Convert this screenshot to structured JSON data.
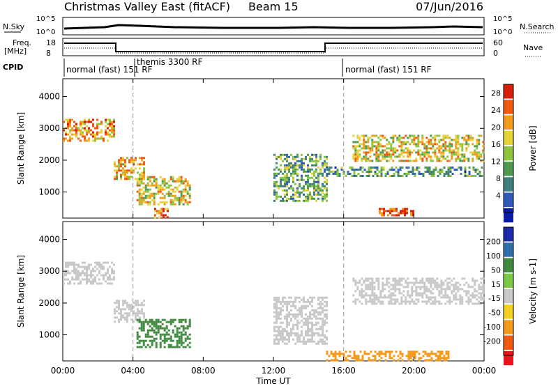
{
  "header": {
    "station": "Christmas Valley East (fitACF)",
    "beam": "Beam 15",
    "date": "07/Jun/2016"
  },
  "panels_small": {
    "nsky": {
      "label": "N.Sky",
      "ticks": [
        "10^5",
        "10^0"
      ]
    },
    "nsearch": {
      "label": "N.Search",
      "ticks": [
        "10^5",
        "10^0"
      ]
    },
    "freq": {
      "label_line1": "Freq.",
      "label_line2": "[MHz]",
      "ticks": [
        "18",
        "8"
      ]
    },
    "nave": {
      "label": "Nave",
      "ticks": [
        "60",
        "0"
      ]
    },
    "cpid": {
      "label": "CPID",
      "segments": [
        "normal (fast) 151 RF",
        "themis 3300 RF",
        "normal (fast) 151 RF"
      ]
    }
  },
  "chart_data": [
    {
      "type": "heatmap",
      "title": "",
      "xlabel": "Time UT",
      "ylabel": "Slant Range [km]",
      "x_ticks": [
        "00:00",
        "04:00",
        "08:00",
        "12:00",
        "16:00",
        "20:00",
        "00:00"
      ],
      "y_ticks": [
        1000,
        2000,
        3000,
        4000
      ],
      "xlim_hours": [
        0,
        24
      ],
      "ylim_km": [
        180,
        4560
      ],
      "colorbar": {
        "label": "Power [dB]",
        "ticks": [
          4,
          8,
          12,
          16,
          20,
          24,
          28
        ],
        "range": [
          0,
          30
        ],
        "colors": [
          "#0a1aa8",
          "#2f5bb8",
          "#3f7f7f",
          "#4e9a4e",
          "#8cc63f",
          "#e8d23a",
          "#f39a1c",
          "#ee5a12",
          "#d81e05"
        ]
      },
      "echo_regions": [
        {
          "t_start": 0.0,
          "t_end": 2.9,
          "range_start": 2600,
          "range_end": 3300,
          "power_db": 22
        },
        {
          "t_start": 2.9,
          "t_end": 4.6,
          "range_start": 1400,
          "range_end": 2100,
          "power_db": 20
        },
        {
          "t_start": 4.2,
          "t_end": 7.2,
          "range_start": 600,
          "range_end": 1500,
          "power_db": 18
        },
        {
          "t_start": 5.2,
          "t_end": 6.0,
          "range_start": 200,
          "range_end": 500,
          "power_db": 24
        },
        {
          "t_start": 12.0,
          "t_end": 15.0,
          "range_start": 700,
          "range_end": 2200,
          "power_db": 12
        },
        {
          "t_start": 15.0,
          "t_end": 24.0,
          "range_start": 1500,
          "range_end": 1800,
          "power_db": 10
        },
        {
          "t_start": 16.5,
          "t_end": 24.0,
          "range_start": 2000,
          "range_end": 2800,
          "power_db": 18
        },
        {
          "t_start": 18.0,
          "t_end": 20.0,
          "range_start": 250,
          "range_end": 500,
          "power_db": 26
        }
      ]
    },
    {
      "type": "heatmap",
      "title": "",
      "xlabel": "Time UT",
      "ylabel": "Slant Range [km]",
      "x_ticks": [
        "00:00",
        "04:00",
        "08:00",
        "12:00",
        "16:00",
        "20:00",
        "00:00"
      ],
      "y_ticks": [
        1000,
        2000,
        3000,
        4000
      ],
      "xlim_hours": [
        0,
        24
      ],
      "ylim_km": [
        180,
        4560
      ],
      "colorbar": {
        "label": "Velocity [m s-1]",
        "ticks": [
          200,
          100,
          50,
          15,
          -15,
          -50,
          -100,
          -200
        ],
        "colors": [
          "#1a2aa8",
          "#2f6fb0",
          "#3f8a3f",
          "#7ac943",
          "#c8c8c8",
          "#f5d020",
          "#f39a1c",
          "#ee5a12",
          "#e8141c"
        ]
      },
      "echo_regions": [
        {
          "t_start": 0.0,
          "t_end": 2.9,
          "range_start": 2600,
          "range_end": 3300,
          "velocity": 0
        },
        {
          "t_start": 2.9,
          "t_end": 4.6,
          "range_start": 1400,
          "range_end": 2100,
          "velocity": 0
        },
        {
          "t_start": 4.2,
          "t_end": 7.2,
          "range_start": 600,
          "range_end": 1500,
          "velocity": 60
        },
        {
          "t_start": 12.0,
          "t_end": 15.0,
          "range_start": 700,
          "range_end": 2200,
          "velocity": 0
        },
        {
          "t_start": 16.5,
          "t_end": 24.0,
          "range_start": 2000,
          "range_end": 2800,
          "velocity": 0
        },
        {
          "t_start": 15.0,
          "t_end": 22.0,
          "range_start": 200,
          "range_end": 500,
          "velocity": -60
        }
      ]
    }
  ]
}
